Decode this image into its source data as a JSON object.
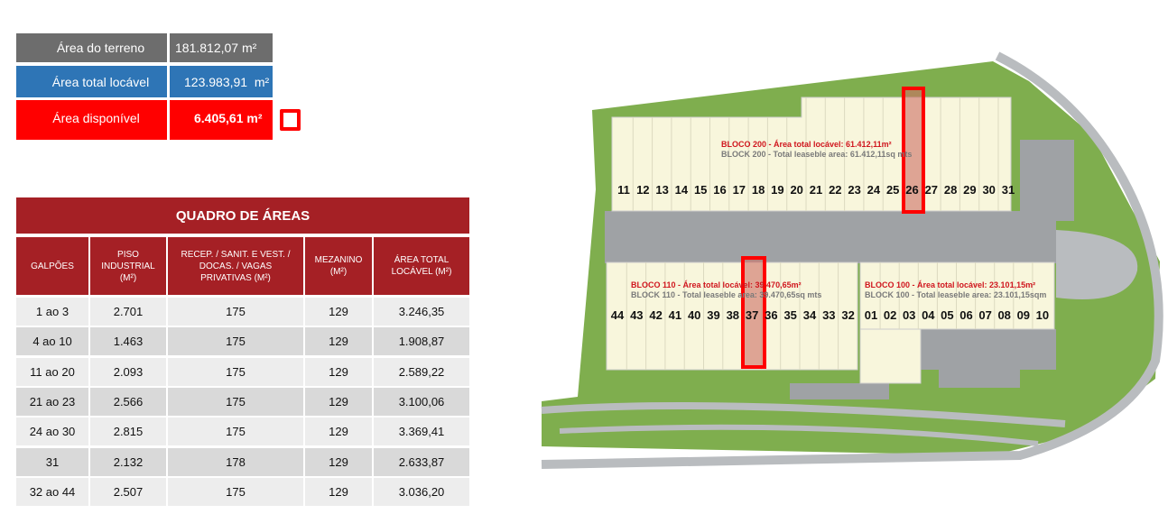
{
  "summary": {
    "terreno": {
      "label": "Área do terreno",
      "value": "181.812,07 m²",
      "color": "#6d6d6d"
    },
    "locavel": {
      "label": "Área total locável",
      "value": "123.983,91  m²",
      "color": "#2e75b6"
    },
    "disponivel": {
      "label": "Área disponível",
      "value": "6.405,61 m²",
      "color": "#ff0000"
    }
  },
  "table": {
    "title": "QUADRO DE ÁREAS",
    "headers": [
      "GALPÕES",
      "PISO INDUSTRIAL (M²)",
      "RECEP. / SANIT. E VEST. / DOCAS. / VAGAS PRIVATIVAS (M²)",
      "MEZANINO (M²)",
      "ÁREA TOTAL LOCÁVEL (M²)"
    ],
    "rows": [
      [
        "1 ao 3",
        "2.701",
        "175",
        "129",
        "3.246,35"
      ],
      [
        "4 ao 10",
        "1.463",
        "175",
        "129",
        "1.908,87"
      ],
      [
        "11 ao 20",
        "2.093",
        "175",
        "129",
        "2.589,22"
      ],
      [
        "21 ao 23",
        "2.566",
        "175",
        "129",
        "3.100,06"
      ],
      [
        "24 ao 30",
        "2.815",
        "175",
        "129",
        "3.369,41"
      ],
      [
        "31",
        "2.132",
        "178",
        "129",
        "2.633,87"
      ],
      [
        "32 ao 44",
        "2.507",
        "175",
        "129",
        "3.036,20"
      ]
    ]
  },
  "site_plan": {
    "block200": {
      "pt": "BLOCO 200 - Área total locável: 61.412,11m²",
      "en": "BLOCK 200 - Total leaseble area: 61.412,11sq mts",
      "units": [
        "11",
        "12",
        "13",
        "14",
        "15",
        "16",
        "17",
        "18",
        "19",
        "20",
        "21",
        "22",
        "23",
        "24",
        "25",
        "26",
        "27",
        "28",
        "29",
        "30",
        "31"
      ]
    },
    "block110": {
      "pt": "BLOCO 110 - Área total locável: 39.470,65m²",
      "en": "BLOCK 110 - Total leaseble area: 39.470,65sq mts",
      "units": [
        "44",
        "43",
        "42",
        "41",
        "40",
        "39",
        "38",
        "37",
        "36",
        "35",
        "34",
        "33",
        "32"
      ]
    },
    "block100": {
      "pt": "BLOCO 100 - Área total locável: 23.101,15m²",
      "en": "BLOCK 100 - Total leaseble area: 23.101,15sqm",
      "units": [
        "01",
        "02",
        "03",
        "04",
        "05",
        "06",
        "07",
        "08",
        "09",
        "10"
      ]
    },
    "available_units": [
      "26",
      "37"
    ]
  }
}
